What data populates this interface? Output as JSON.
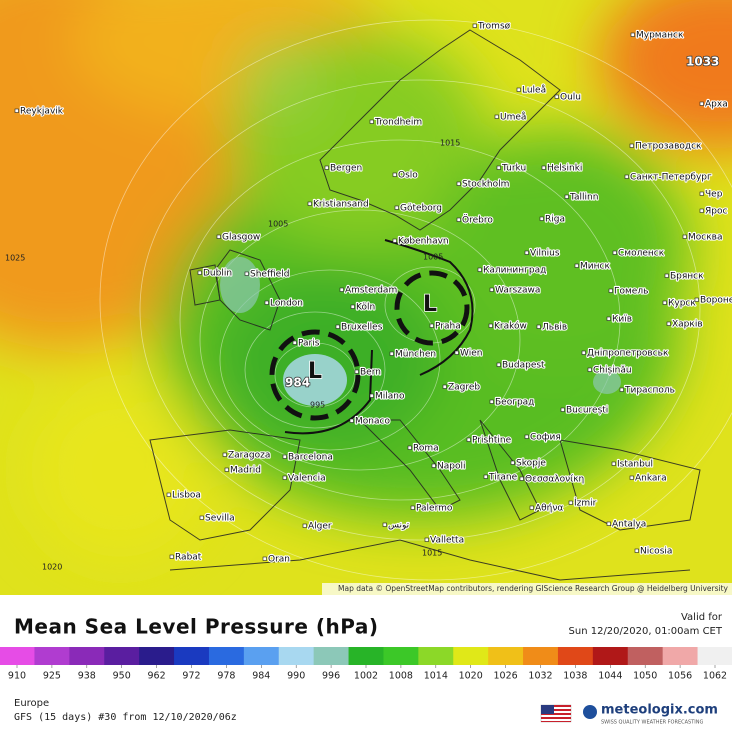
{
  "map": {
    "cities": [
      "Tromsø",
      "Мурманск",
      "Reykjavik",
      "Luleå",
      "Oulu",
      "Umeå",
      "Арха",
      "Trondheim",
      "Петрозаводск",
      "Bergen",
      "Turku",
      "Helsinki",
      "Oslo",
      "Санкт-Петербург",
      "Stockholm",
      "Tallinn",
      "Kristiansand",
      "Göteborg",
      "Örebro",
      "Чер",
      "Ярос",
      "Riga",
      "Glasgow",
      "København",
      "Vilnius",
      "Москва",
      "Смоленск",
      "Минск",
      "Калининград",
      "Dublin",
      "Sheffield",
      "Брянск",
      "Amsterdam",
      "Warszawa",
      "Гомель",
      "Курск",
      "Воронеж",
      "London",
      "Köln",
      "Київ",
      "Bruxelles",
      "Praha",
      "Kraków",
      "Львів",
      "Харків",
      "Paris",
      "München",
      "Wien",
      "Дніпропетровськ",
      "Budapest",
      "Chișinău",
      "Bern",
      "Zagreb",
      "Тирасполь",
      "Milano",
      "Београд",
      "București",
      "Monaco",
      "Prishtine",
      "София",
      "Zaragoza",
      "Roma",
      "Barcelona",
      "Skopje",
      "Istanbul",
      "Madrid",
      "Napoli",
      "Tirane",
      "Valencia",
      "Θεσσαλονίκη",
      "Ankara",
      "Lisboa",
      "Palermo",
      "Αθήνα",
      "İzmir",
      "Sevilla",
      "Alger",
      "تونس",
      "Antalya",
      "Valletta",
      "Nicosia",
      "Rabat",
      "Oran"
    ],
    "isobar_labels": [
      1005,
      1025,
      1015,
      1020,
      1015,
      1033,
      984,
      995,
      1005
    ],
    "lows": [
      "L",
      "L"
    ],
    "attribution": "Map data © OpenStreetMap contributors, rendering GIScience Research Group @ Heidelberg University"
  },
  "footer": {
    "title": "Mean Sea Level Pressure (hPa)",
    "valid_label": "Valid for",
    "valid_time": "Sun 12/20/2020, 01:00am CET",
    "region": "Europe",
    "run": "GFS (15 days) #30 from 12/10/2020/06z",
    "brand": "meteologix.com",
    "tagline": "SWISS QUALITY WEATHER FORECASTING"
  },
  "legend": {
    "ticks": [
      910,
      925,
      938,
      950,
      962,
      972,
      978,
      984,
      990,
      996,
      1002,
      1008,
      1014,
      1020,
      1026,
      1032,
      1038,
      1044,
      1050,
      1056,
      1062
    ],
    "colors": [
      "#e64ce6",
      "#b03cd0",
      "#8a2ab8",
      "#5a1ea0",
      "#2a1c8c",
      "#1a3ac0",
      "#2a6ae0",
      "#5aa0f0",
      "#a8d8f0",
      "#8cc8b8",
      "#28b428",
      "#3cc828",
      "#8cd828",
      "#e0e818",
      "#f0c018",
      "#f08c18",
      "#e04818",
      "#b01818",
      "#c06060",
      "#f0a8a8",
      "#f0f0f0"
    ]
  }
}
